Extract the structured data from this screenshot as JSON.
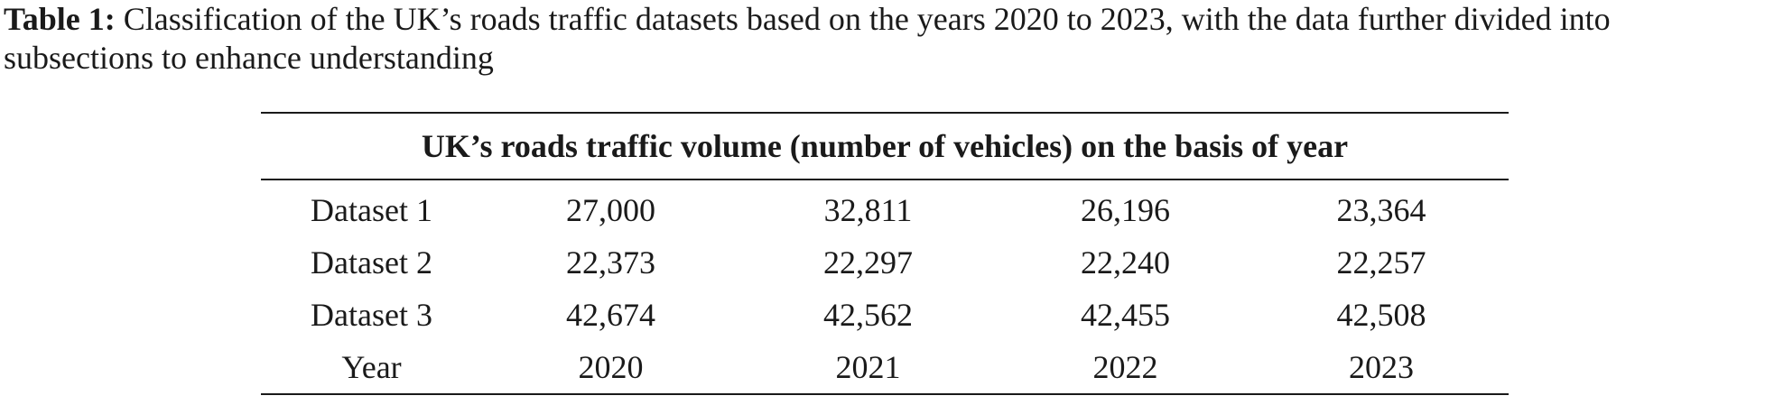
{
  "caption": {
    "label": "Table 1:",
    "text": "Classification of the UK’s roads traffic datasets based on the years 2020 to 2023, with the data further divided into subsections to enhance understanding"
  },
  "table": {
    "header": "UK’s roads traffic volume (number of vehicles) on the basis of year",
    "rows": [
      [
        "Dataset 1",
        "27,000",
        "32,811",
        "26,196",
        "23,364"
      ],
      [
        "Dataset 2",
        "22,373",
        "22,297",
        "22,240",
        "22,257"
      ],
      [
        "Dataset 3",
        "42,674",
        "42,562",
        "42,455",
        "42,508"
      ],
      [
        "Year",
        "2020",
        "2021",
        "2022",
        "2023"
      ]
    ]
  }
}
